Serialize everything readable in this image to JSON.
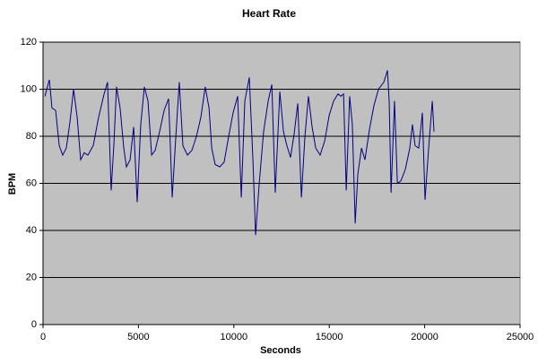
{
  "chart_data": {
    "type": "line",
    "title": "Heart Rate",
    "x_label": "Seconds",
    "y_label": "BPM",
    "x": [
      100,
      330,
      470,
      660,
      850,
      1030,
      1220,
      1410,
      1600,
      1790,
      1970,
      2160,
      2350,
      2630,
      2910,
      3200,
      3380,
      3570,
      3710,
      3850,
      4040,
      4230,
      4370,
      4560,
      4750,
      4935,
      5120,
      5310,
      5500,
      5690,
      5875,
      6110,
      6345,
      6580,
      6770,
      6960,
      7140,
      7330,
      7570,
      7800,
      8040,
      8270,
      8500,
      8700,
      8840,
      9020,
      9260,
      9490,
      9730,
      9960,
      10200,
      10390,
      10575,
      10810,
      11000,
      11140,
      11330,
      11560,
      11800,
      11990,
      12170,
      12410,
      12600,
      12780,
      12970,
      13160,
      13350,
      13540,
      13725,
      13910,
      14100,
      14290,
      14520,
      14760,
      15000,
      15230,
      15460,
      15600,
      15750,
      15890,
      16070,
      16210,
      16360,
      16500,
      16690,
      16870,
      17110,
      17340,
      17580,
      17860,
      18050,
      18140,
      18240,
      18420,
      18570,
      18750,
      18990,
      19220,
      19360,
      19500,
      19690,
      19880,
      20020,
      20210,
      20400,
      20490
    ],
    "series": [
      {
        "name": "BPM",
        "color": "#000080",
        "values": [
          97,
          104,
          92,
          91,
          76,
          72,
          75,
          86,
          100,
          88,
          70,
          73,
          72,
          76,
          88,
          98,
          103,
          57,
          76,
          101,
          92,
          75,
          67,
          70,
          84,
          52,
          85,
          101,
          95,
          72,
          74,
          82,
          91,
          96,
          54,
          80,
          103,
          76,
          72,
          74,
          80,
          88,
          101,
          92,
          75,
          68,
          67,
          69,
          80,
          90,
          97,
          54,
          95,
          105,
          70,
          38,
          60,
          82,
          95,
          102,
          56,
          99,
          82,
          76,
          71,
          81,
          94,
          54,
          80,
          97,
          84,
          75,
          72,
          78,
          89,
          95,
          98,
          97,
          98,
          57,
          97,
          85,
          43,
          64,
          75,
          70,
          83,
          93,
          100,
          103,
          108,
          95,
          56,
          95,
          60,
          61,
          66,
          75,
          85,
          76,
          75,
          90,
          53,
          75,
          95,
          82
        ]
      }
    ],
    "xlim": [
      0,
      25000
    ],
    "ylim": [
      0,
      120
    ],
    "xticks": [
      0,
      5000,
      10000,
      15000,
      20000,
      25000
    ],
    "yticks": [
      0,
      20,
      40,
      60,
      80,
      100,
      120
    ],
    "grid": true,
    "plot_background": "#c0c0c0"
  }
}
